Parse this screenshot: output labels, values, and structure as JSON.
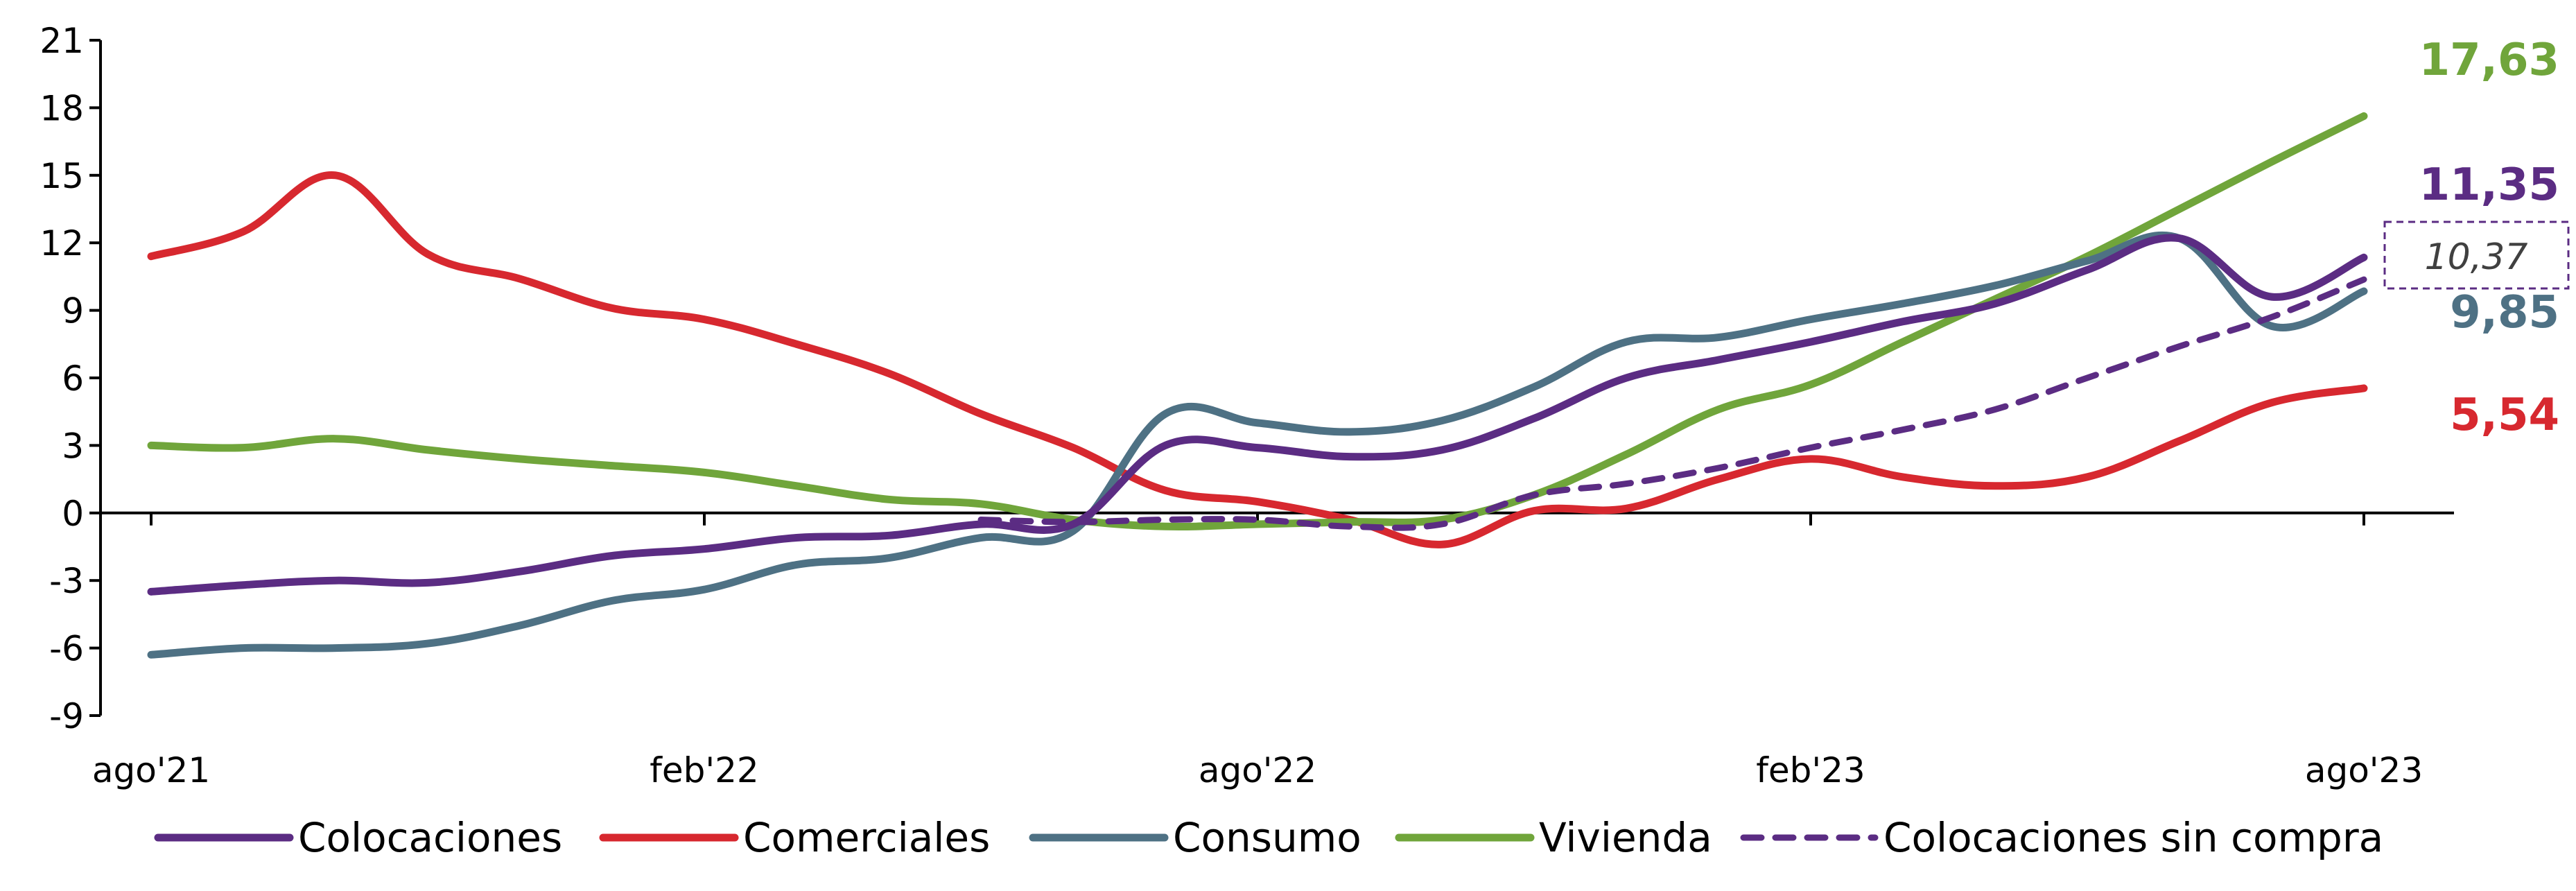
{
  "chart_data": {
    "type": "line",
    "title": "",
    "xlabel": "",
    "ylabel": "",
    "ylim": [
      -9,
      21
    ],
    "yticks": [
      -9,
      -6,
      -3,
      0,
      3,
      6,
      9,
      12,
      15,
      18,
      21
    ],
    "ytick_labels": [
      "-9",
      "-6",
      "-3",
      "0",
      "3",
      "6",
      "9",
      "12",
      "15",
      "18",
      "21"
    ],
    "x_labels": [
      {
        "x": 0,
        "label": "ago'21"
      },
      {
        "x": 6,
        "label": "feb'22"
      },
      {
        "x": 12,
        "label": "ago'22"
      },
      {
        "x": 18,
        "label": "feb'23"
      },
      {
        "x": 24,
        "label": "ago'23"
      }
    ],
    "x": [
      "ago'21",
      "sep'21",
      "oct'21",
      "nov'21",
      "dic'21",
      "ene'22",
      "feb'22",
      "mar'22",
      "abr'22",
      "may'22",
      "jun'22",
      "jul'22",
      "ago'22",
      "sep'22",
      "oct'22",
      "nov'22",
      "dic'22",
      "ene'23",
      "feb'23",
      "mar'23",
      "abr'23",
      "may'23",
      "jun'23",
      "jul'23",
      "ago'23"
    ],
    "series": [
      {
        "name": "Colocaciones",
        "color": "#5b2c83",
        "dash": false,
        "values": [
          -3.5,
          -3.2,
          -3.0,
          -3.1,
          -2.6,
          -1.9,
          -1.6,
          -1.1,
          -1.0,
          -0.5,
          -0.5,
          3.0,
          2.9,
          2.5,
          2.8,
          4.2,
          6.0,
          6.8,
          7.6,
          8.5,
          9.3,
          10.8,
          12.2,
          9.6,
          11.35
        ]
      },
      {
        "name": "Comerciales",
        "color": "#d7282f",
        "dash": false,
        "values": [
          11.4,
          12.5,
          15.0,
          11.5,
          10.4,
          9.1,
          8.6,
          7.5,
          6.2,
          4.4,
          2.9,
          1.0,
          0.5,
          -0.3,
          -1.4,
          0.1,
          0.2,
          1.5,
          2.4,
          1.6,
          1.2,
          1.6,
          3.2,
          4.9,
          5.54
        ]
      },
      {
        "name": "Consumo",
        "color": "#4e7184",
        "dash": false,
        "values": [
          -6.3,
          -6.0,
          -6.0,
          -5.8,
          -5.0,
          -3.9,
          -3.4,
          -2.3,
          -2.0,
          -1.1,
          -0.8,
          4.4,
          4.0,
          3.6,
          4.1,
          5.6,
          7.6,
          7.8,
          8.6,
          9.3,
          10.1,
          11.2,
          12.2,
          8.3,
          9.85
        ]
      },
      {
        "name": "Vivienda",
        "color": "#70a53b",
        "dash": false,
        "values": [
          3.0,
          2.9,
          3.3,
          2.8,
          2.4,
          2.1,
          1.8,
          1.2,
          0.6,
          0.4,
          -0.3,
          -0.6,
          -0.5,
          -0.4,
          -0.3,
          0.8,
          2.6,
          4.6,
          5.7,
          7.6,
          9.5,
          11.4,
          13.5,
          15.6,
          17.63
        ]
      },
      {
        "name": "Colocaciones sin compra",
        "color": "#5b2c83",
        "dash": true,
        "values": [
          null,
          null,
          null,
          null,
          null,
          null,
          null,
          null,
          null,
          -0.3,
          -0.4,
          -0.3,
          -0.3,
          -0.6,
          -0.5,
          0.8,
          1.3,
          2.0,
          2.9,
          3.7,
          4.6,
          6.0,
          7.4,
          8.7,
          10.37
        ]
      }
    ],
    "end_labels": [
      {
        "series": "Vivienda",
        "text": "17,63",
        "style": "bold"
      },
      {
        "series": "Colocaciones",
        "text": "11,35",
        "style": "bold"
      },
      {
        "series": "Colocaciones sin compra",
        "text": "10,37",
        "style": "italic-boxed"
      },
      {
        "series": "Consumo",
        "text": "9,85",
        "style": "bold"
      },
      {
        "series": "Comerciales",
        "text": "5,54",
        "style": "bold"
      }
    ],
    "legend": {
      "placement": "bottom",
      "entries": [
        "Colocaciones",
        "Comerciales",
        "Consumo",
        "Vivienda",
        "Colocaciones sin compra"
      ]
    },
    "grid": false
  }
}
